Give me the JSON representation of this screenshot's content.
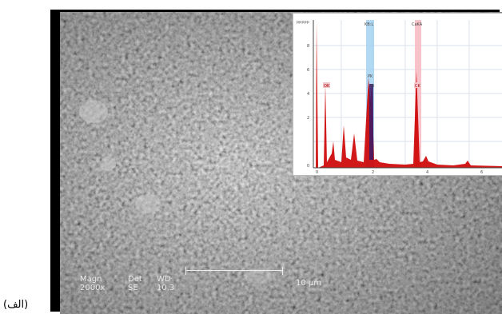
{
  "caption": "(الف)",
  "sem": {
    "magn_label": "Magn",
    "magn_value": "2000x",
    "det_label": "Det",
    "det_value": "SE",
    "wd_label": "WD",
    "wd_value": "10.3",
    "scale_label": "10 μm"
  },
  "eds": {
    "counts_label": "ppppp",
    "peak_labels": [
      "KB:L",
      "CaKA",
      "OK",
      "CK",
      "PK",
      "Si"
    ],
    "y_ticks": [
      "8",
      "6",
      "4",
      "2",
      "0"
    ],
    "x_ticks": [
      "0",
      "2",
      "4",
      "6"
    ],
    "colors": {
      "spectrum": "#cc0000",
      "band_blue": "#9fd0f0",
      "band_pink": "#f6b3bd",
      "overlay": "#3a1a6a"
    }
  }
}
